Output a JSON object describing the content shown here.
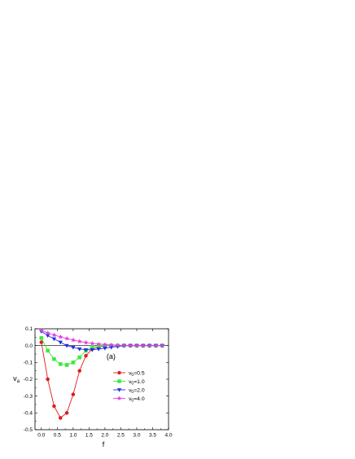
{
  "chart_data": {
    "type": "line",
    "xlabel": "f",
    "ylabel": "v",
    "ylabel_subscript": "a",
    "annotation": "(a)",
    "xlim": [
      -0.2,
      4.0
    ],
    "ylim": [
      -0.5,
      0.1
    ],
    "xticks": [
      0.0,
      0.5,
      1.0,
      1.5,
      2.0,
      2.5,
      3.0,
      3.5,
      4.0
    ],
    "xtick_labels": [
      "0.0",
      "0.5",
      "1.0",
      "1.5",
      "2.0",
      "2.5",
      "3.0",
      "3.5",
      "4.0"
    ],
    "yticks": [
      0.1,
      0.0,
      -0.1,
      -0.2,
      -0.3,
      -0.4,
      -0.5
    ],
    "ytick_labels": [
      "0.1",
      "0.0",
      "-0.1",
      "-0.2",
      "-0.3",
      "-0.4",
      "-0.5"
    ],
    "grid": false,
    "legend_position": "right-middle",
    "series": [
      {
        "legend_base": "v",
        "legend_sub": "0",
        "legend_value": "=0.5",
        "color": "#e41a1c",
        "marker": "circle",
        "x": [
          0.0,
          0.2,
          0.4,
          0.6,
          0.8,
          1.0,
          1.2,
          1.4,
          1.6,
          1.8,
          2.0,
          2.2,
          2.4,
          2.6,
          2.8,
          3.0,
          3.2,
          3.4,
          3.6,
          3.8
        ],
        "y": [
          0.02,
          -0.2,
          -0.36,
          -0.43,
          -0.4,
          -0.29,
          -0.15,
          -0.06,
          -0.02,
          -0.01,
          0.0,
          0.0,
          0.0,
          0.0,
          0.0,
          0.0,
          0.0,
          0.0,
          0.0,
          0.0
        ]
      },
      {
        "legend_base": "v",
        "legend_sub": "0",
        "legend_value": "=1.0",
        "color": "#3ee83e",
        "marker": "square",
        "x": [
          0.0,
          0.2,
          0.4,
          0.6,
          0.8,
          1.0,
          1.2,
          1.4,
          1.6,
          1.8,
          2.0,
          2.2,
          2.4,
          2.6,
          2.8,
          3.0,
          3.2,
          3.4,
          3.6,
          3.8
        ],
        "y": [
          0.045,
          -0.03,
          -0.08,
          -0.11,
          -0.115,
          -0.1,
          -0.07,
          -0.03,
          -0.01,
          0.0,
          0.0,
          0.0,
          0.0,
          0.0,
          0.0,
          0.0,
          0.0,
          0.0,
          0.0,
          0.0
        ]
      },
      {
        "legend_base": "v",
        "legend_sub": "0",
        "legend_value": "=2.0",
        "color": "#1f2fe0",
        "marker": "triangle-down",
        "x": [
          0.0,
          0.2,
          0.4,
          0.6,
          0.8,
          1.0,
          1.2,
          1.4,
          1.6,
          1.8,
          2.0,
          2.2,
          2.4,
          2.6,
          2.8,
          3.0,
          3.2,
          3.4,
          3.6,
          3.8
        ],
        "y": [
          0.085,
          0.06,
          0.04,
          0.02,
          0.0,
          -0.01,
          -0.02,
          -0.025,
          -0.025,
          -0.02,
          -0.015,
          -0.01,
          -0.005,
          0.0,
          0.0,
          0.0,
          0.0,
          0.0,
          0.0,
          0.0
        ]
      },
      {
        "legend_base": "v",
        "legend_sub": "0",
        "legend_value": "=4.0",
        "color": "#e040e0",
        "marker": "star",
        "x": [
          0.0,
          0.2,
          0.4,
          0.6,
          0.8,
          1.0,
          1.2,
          1.4,
          1.6,
          1.8,
          2.0,
          2.2,
          2.4,
          2.6,
          2.8,
          3.0,
          3.2,
          3.4,
          3.6,
          3.8
        ],
        "y": [
          0.09,
          0.075,
          0.063,
          0.052,
          0.042,
          0.033,
          0.025,
          0.018,
          0.013,
          0.009,
          0.006,
          0.004,
          0.002,
          0.001,
          0.0,
          0.0,
          0.0,
          0.0,
          0.0,
          0.0
        ]
      }
    ]
  }
}
